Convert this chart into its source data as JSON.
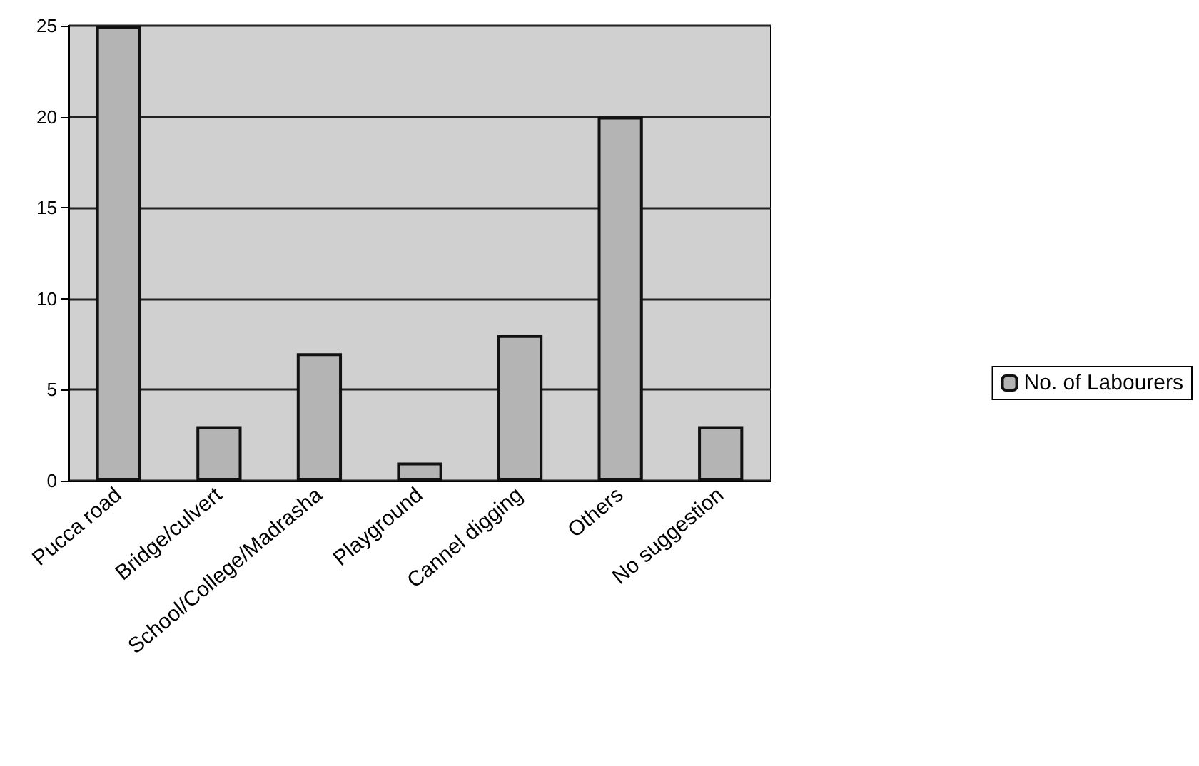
{
  "chart_data": {
    "type": "bar",
    "categories": [
      "Pucca road",
      "Bridge/culvert",
      "School/College/Madrasha",
      "Playground",
      "Cannel digging",
      "Others",
      "No suggestion"
    ],
    "series": [
      {
        "name": "No. of Labourers",
        "color": "#b4b4b4",
        "values": [
          25,
          3,
          7,
          1,
          8,
          20,
          3
        ]
      }
    ],
    "ylim": [
      0,
      25
    ],
    "yticks": [
      0,
      5,
      10,
      15,
      20,
      25
    ],
    "grid": "y",
    "legend": "right"
  }
}
